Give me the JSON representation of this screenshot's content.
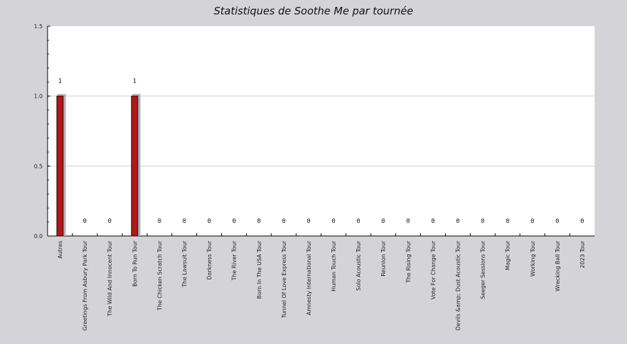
{
  "chart_data": {
    "type": "bar",
    "title": "Statistiques de Soothe Me par tournée",
    "xlabel": "",
    "ylabel": "",
    "ylim": [
      0,
      1.5
    ],
    "yticks": [
      "0.0",
      "0.5",
      "1.0",
      "1.5"
    ],
    "grid": true,
    "categories": [
      "Autres",
      "Greetings From Asbury Park Tour",
      "The Wild And Innocent Tour",
      "Born To Run Tour",
      "The Chicken Scratch Tour",
      "The Lawsuit Tour",
      "Darkness Tour",
      "The River Tour",
      "Born In The USA Tour",
      "Tunnel Of Love Express Tour",
      "Amnesty International Tour",
      "Human Touch Tour",
      "Solo Acoustic Tour",
      "Reunion Tour",
      "The Rising Tour",
      "Vote For Change Tour",
      "Devils &amp; Dust Acoustic Tour",
      "Seeger Sessions Tour",
      "Magic Tour",
      "Working Tour",
      "Wrecking Ball Tour",
      "2023 Tour"
    ],
    "values": [
      1,
      0,
      0,
      1,
      0,
      0,
      0,
      0,
      0,
      0,
      0,
      0,
      0,
      0,
      0,
      0,
      0,
      0,
      0,
      0,
      0,
      0
    ],
    "colors": {
      "bar": "#b0181a",
      "bar_shadow": "#a9b2bd",
      "plot_bg": "#ffffff",
      "page_bg": "#d4d3d8",
      "grid": "#cfcfcf"
    }
  }
}
